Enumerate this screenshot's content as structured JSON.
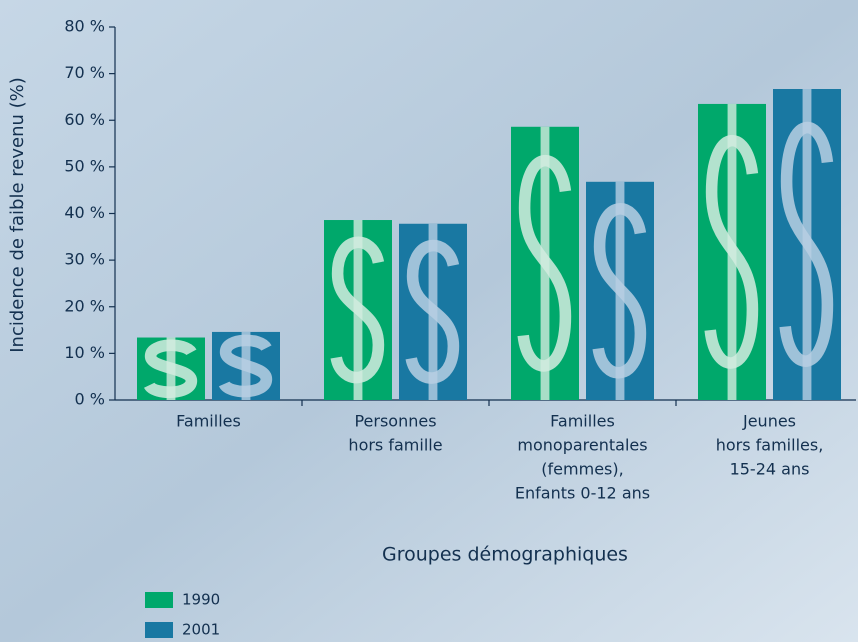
{
  "chart_data": {
    "type": "bar",
    "y_label": "Incidence de faible revenu (%)",
    "x_label": "Groupes démographiques",
    "categories": [
      [
        "Familles"
      ],
      [
        "Personnes",
        "hors famille"
      ],
      [
        "Familles",
        "monoparentales",
        "(femmes),",
        "Enfants 0-12 ans"
      ],
      [
        "Jeunes",
        "hors familles,",
        "15-24 ans"
      ]
    ],
    "series": [
      {
        "name": "1990",
        "color": "#00a86b",
        "values": [
          13.4,
          38.6,
          58.6,
          63.5
        ]
      },
      {
        "name": "2001",
        "color": "#1978a2",
        "values": [
          14.6,
          37.8,
          46.8,
          66.7
        ]
      }
    ],
    "ylim": [
      0,
      80
    ],
    "yticks": [
      {
        "value": 0,
        "label": "0 %"
      },
      {
        "value": 10,
        "label": "10 %"
      },
      {
        "value": 20,
        "label": "20 %"
      },
      {
        "value": 30,
        "label": "30 %"
      },
      {
        "value": 40,
        "label": "40 %"
      },
      {
        "value": 50,
        "label": "50 %"
      },
      {
        "value": 60,
        "label": "60 %"
      },
      {
        "value": 70,
        "label": "70 %"
      },
      {
        "value": 80,
        "label": "80 %"
      }
    ],
    "grid": false
  }
}
